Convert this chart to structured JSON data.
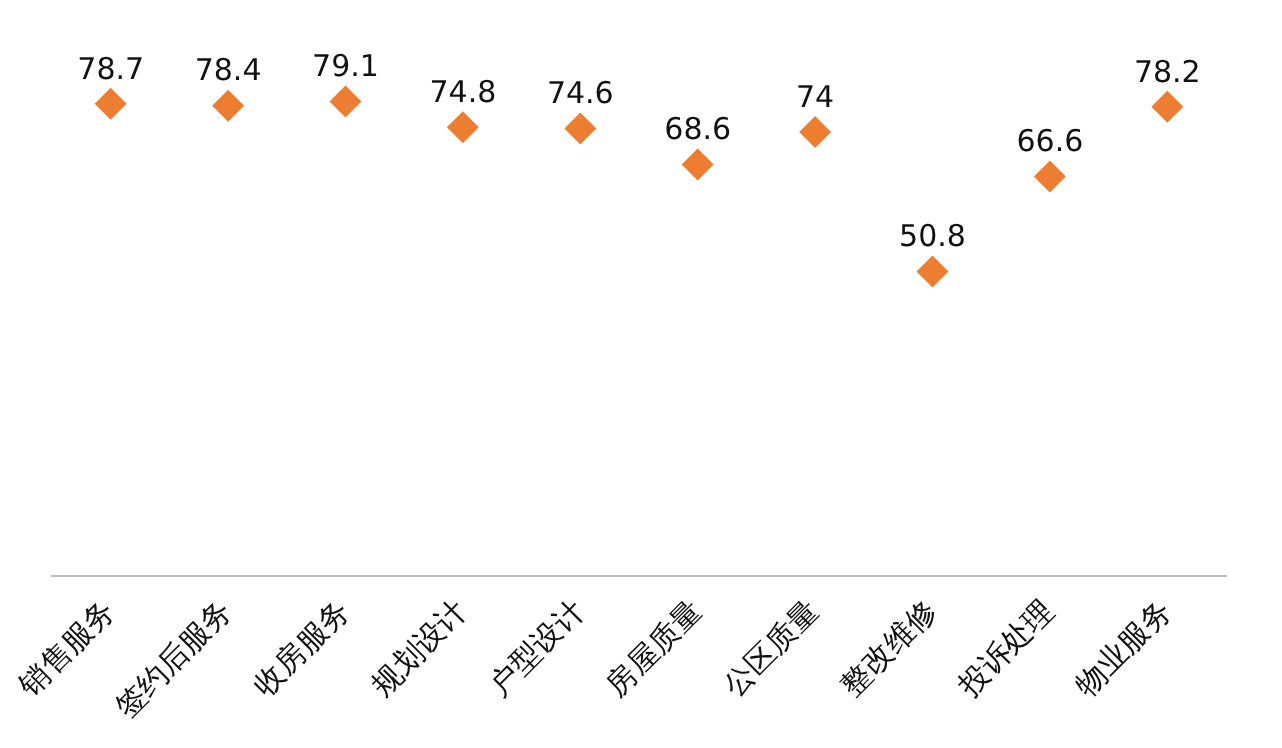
{
  "chart_data": {
    "type": "scatter",
    "categories": [
      "销售服务",
      "签约后服务",
      "收房服务",
      "规划设计",
      "户型设计",
      "房屋质量",
      "公区质量",
      "整改维修",
      "投诉处理",
      "物业服务"
    ],
    "values": [
      78.7,
      78.4,
      79.1,
      74.8,
      74.6,
      68.6,
      74,
      50.8,
      66.6,
      78.2
    ],
    "color": "#ed7d31",
    "marker": "diamond",
    "data_labels": true,
    "tick_labels": "x",
    "grid": false,
    "legend": false
  }
}
